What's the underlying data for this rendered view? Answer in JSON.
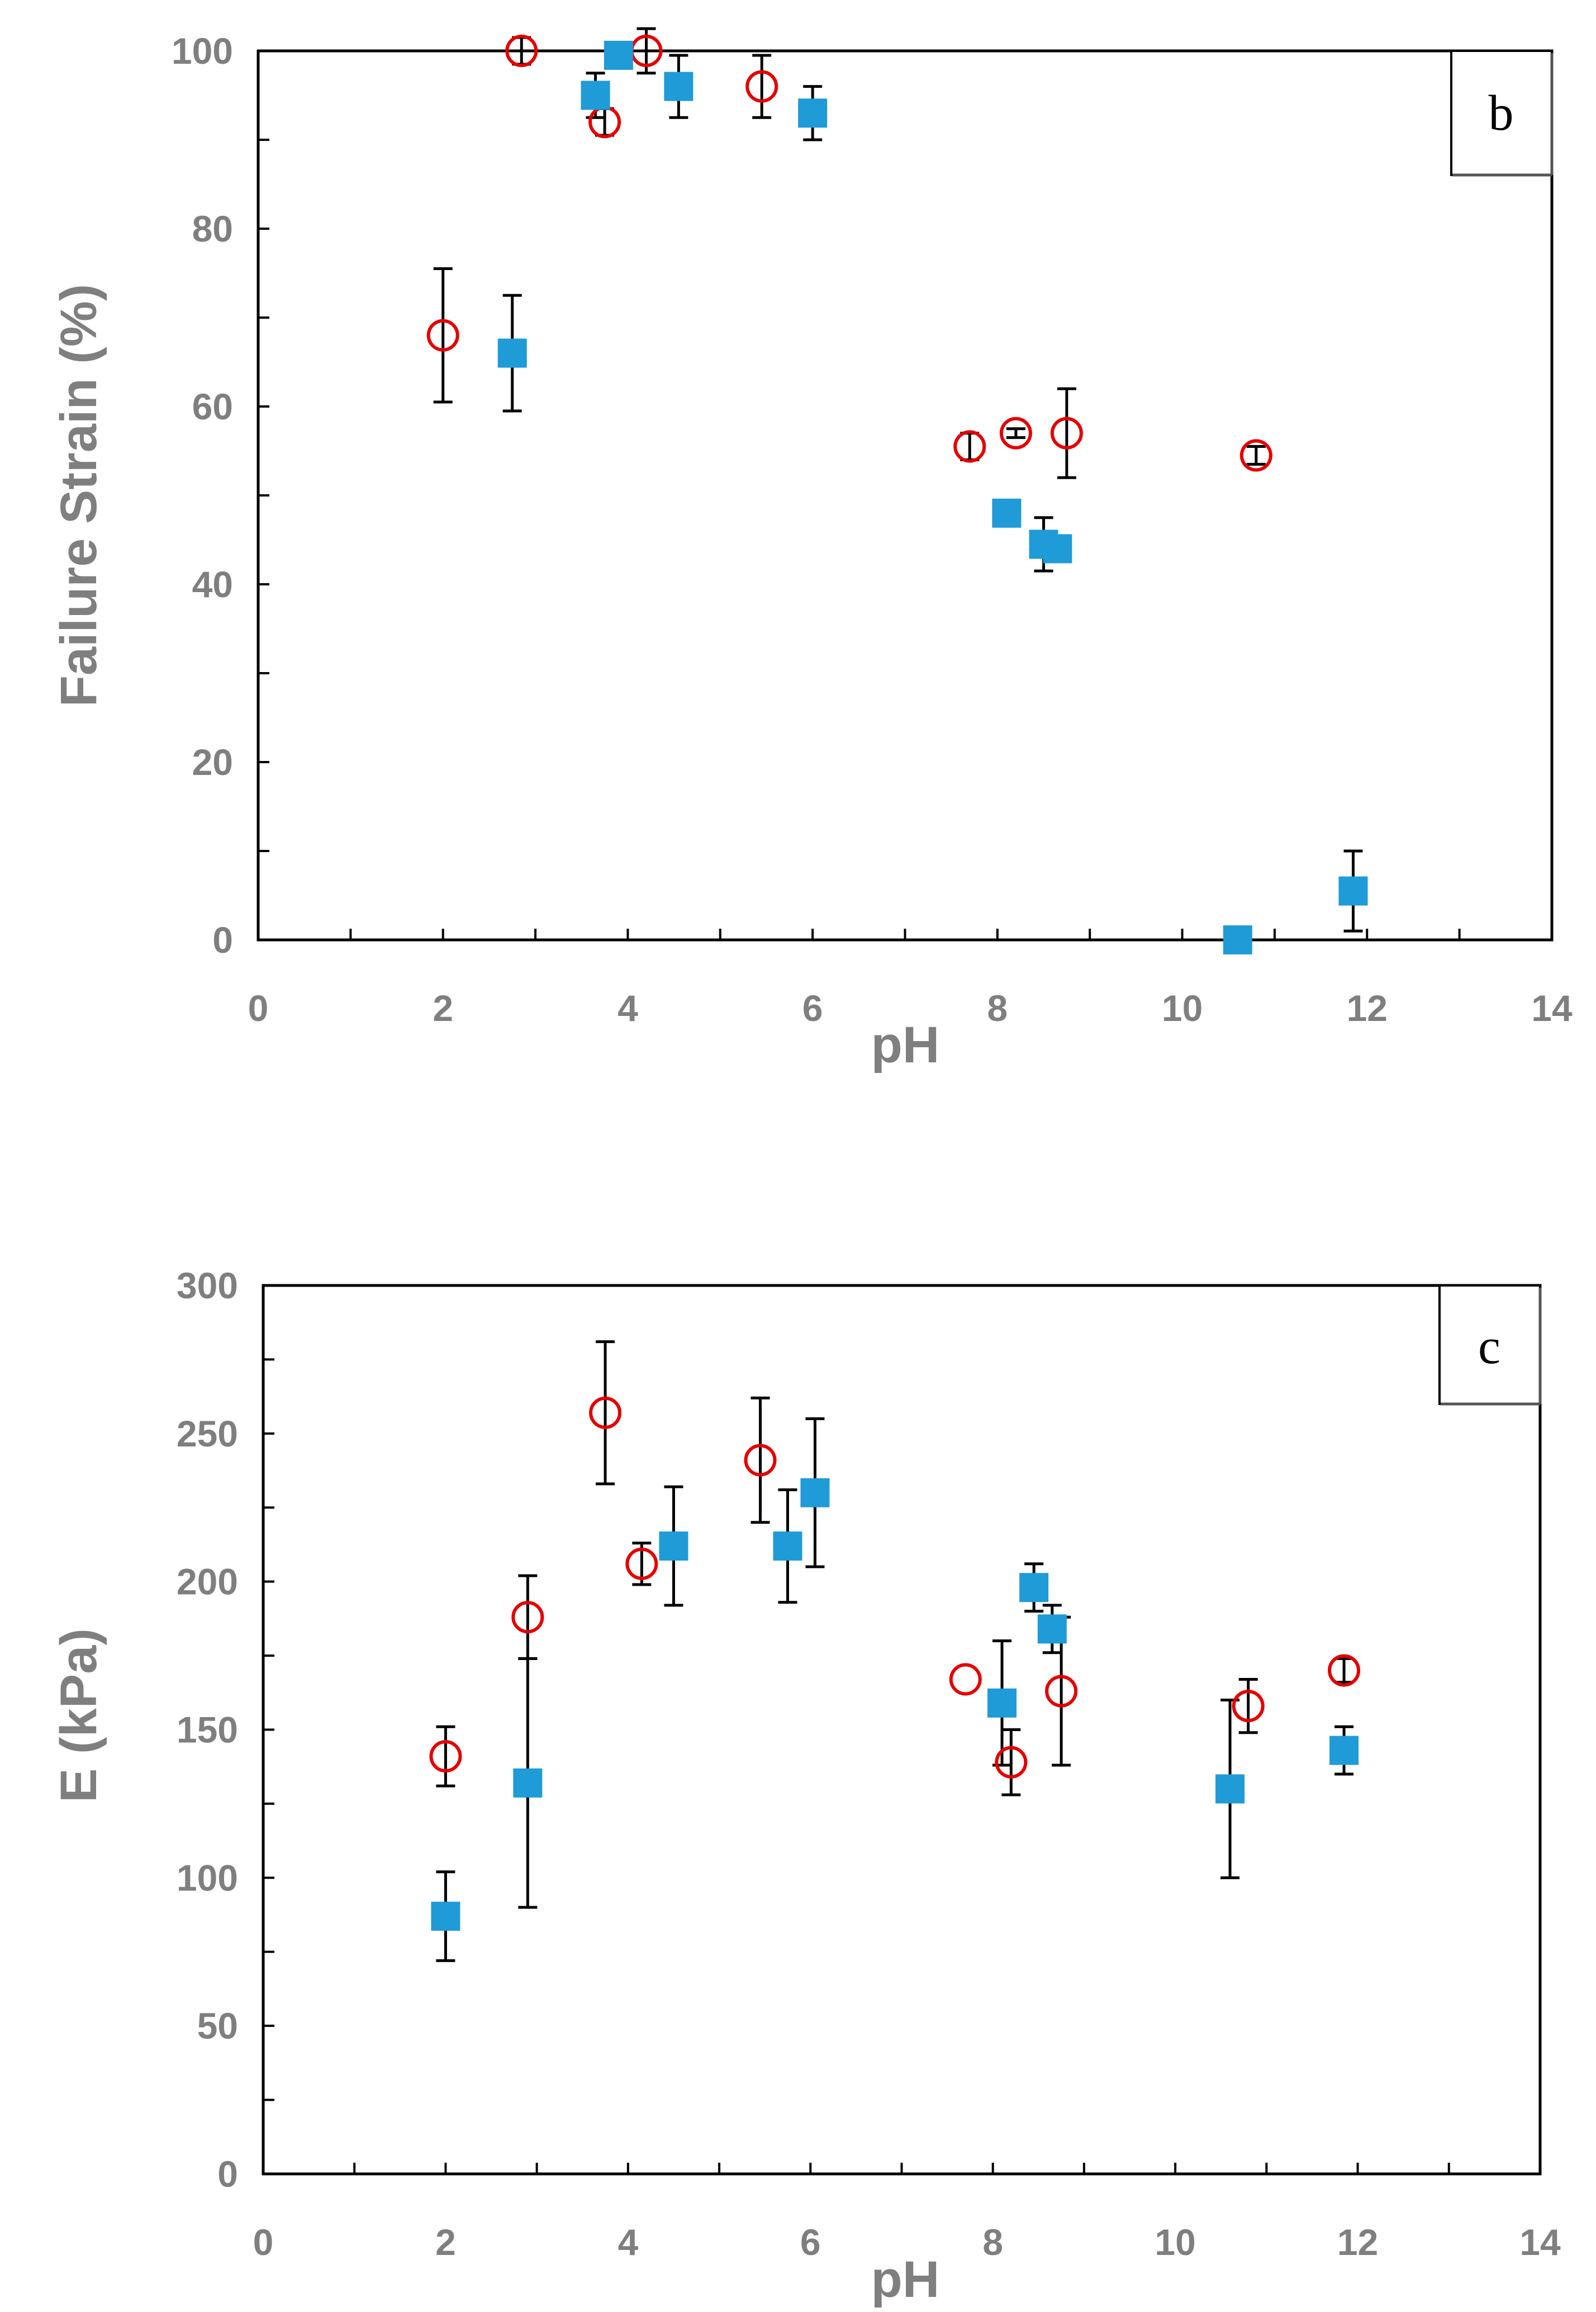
{
  "colors": {
    "axis": "#000000",
    "label": "#7f7f7f",
    "series_square": "#1f9bd7",
    "series_circle": "#e60000",
    "errorbar": "#000000"
  },
  "chart_data": [
    {
      "type": "scatter",
      "panel_label": "b",
      "xlabel": "pH",
      "ylabel": "Failure Strain (%)",
      "xlim": [
        0,
        14
      ],
      "ylim": [
        0,
        100
      ],
      "x_ticks": [
        0,
        2,
        4,
        6,
        8,
        10,
        12,
        14
      ],
      "y_ticks": [
        0,
        20,
        40,
        60,
        80,
        100
      ],
      "x_tick_labels": [
        "0",
        "2",
        "4",
        "6",
        "8",
        "10",
        "12",
        "14"
      ],
      "y_tick_labels": [
        "0",
        "20",
        "40",
        "60",
        "80",
        "100"
      ],
      "series": [
        {
          "name": "circle",
          "marker": "circle",
          "points": [
            {
              "x": 2.0,
              "y": 68,
              "err": 7.5
            },
            {
              "x": 2.85,
              "y": 100,
              "err": 1.5
            },
            {
              "x": 3.75,
              "y": 92,
              "err": 1.5
            },
            {
              "x": 4.2,
              "y": 100,
              "err": 2.5
            },
            {
              "x": 5.45,
              "y": 96,
              "err": 3.5
            },
            {
              "x": 7.7,
              "y": 55.5,
              "err": 1.5
            },
            {
              "x": 8.2,
              "y": 57,
              "err": 0.5
            },
            {
              "x": 8.75,
              "y": 57,
              "err": 5
            },
            {
              "x": 10.8,
              "y": 54.5,
              "err": 1
            }
          ]
        },
        {
          "name": "square",
          "marker": "square",
          "points": [
            {
              "x": 2.75,
              "y": 66,
              "err": 6.5
            },
            {
              "x": 3.65,
              "y": 95,
              "err": 2.5
            },
            {
              "x": 3.9,
              "y": 99.5,
              "err": 1
            },
            {
              "x": 4.55,
              "y": 96,
              "err": 3.5
            },
            {
              "x": 6.0,
              "y": 93,
              "err": 3
            },
            {
              "x": 8.1,
              "y": 48,
              "err": 0
            },
            {
              "x": 8.5,
              "y": 44.5,
              "err": 3
            },
            {
              "x": 8.65,
              "y": 44,
              "err": 0
            },
            {
              "x": 10.6,
              "y": 0,
              "err": 0
            },
            {
              "x": 11.85,
              "y": 5.5,
              "err": 4.5
            }
          ]
        }
      ]
    },
    {
      "type": "scatter",
      "panel_label": "c",
      "xlabel": "pH",
      "ylabel": "E (kPa)",
      "xlim": [
        0,
        14
      ],
      "ylim": [
        0,
        300
      ],
      "x_ticks": [
        0,
        2,
        4,
        6,
        8,
        10,
        12,
        14
      ],
      "y_ticks": [
        0,
        50,
        100,
        150,
        200,
        250,
        300
      ],
      "x_tick_labels": [
        "0",
        "2",
        "4",
        "6",
        "8",
        "10",
        "12",
        "14"
      ],
      "y_tick_labels": [
        "0",
        "50",
        "100",
        "150",
        "200",
        "250",
        "300"
      ],
      "series": [
        {
          "name": "circle",
          "marker": "circle",
          "points": [
            {
              "x": 2.0,
              "y": 141,
              "err": 10
            },
            {
              "x": 2.9,
              "y": 188,
              "err": 14
            },
            {
              "x": 3.75,
              "y": 257,
              "err": 24
            },
            {
              "x": 4.15,
              "y": 206,
              "err": 7
            },
            {
              "x": 5.45,
              "y": 241,
              "err": 21
            },
            {
              "x": 7.7,
              "y": 167,
              "err": 0
            },
            {
              "x": 8.2,
              "y": 139,
              "err": 11
            },
            {
              "x": 8.75,
              "y": 163,
              "err": 25
            },
            {
              "x": 10.8,
              "y": 158,
              "err": 9
            },
            {
              "x": 11.85,
              "y": 170,
              "err": 4
            }
          ]
        },
        {
          "name": "square",
          "marker": "square",
          "points": [
            {
              "x": 2.0,
              "y": 87,
              "err": 15
            },
            {
              "x": 2.9,
              "y": 132,
              "err": 42
            },
            {
              "x": 4.5,
              "y": 212,
              "err": 20
            },
            {
              "x": 5.75,
              "y": 212,
              "err": 19
            },
            {
              "x": 6.05,
              "y": 230,
              "err": 25
            },
            {
              "x": 8.1,
              "y": 159,
              "err": 21
            },
            {
              "x": 8.45,
              "y": 198,
              "err": 8
            },
            {
              "x": 8.65,
              "y": 184,
              "err": 8
            },
            {
              "x": 10.6,
              "y": 130,
              "err": 30
            },
            {
              "x": 11.85,
              "y": 143,
              "err": 8
            }
          ]
        }
      ]
    }
  ]
}
